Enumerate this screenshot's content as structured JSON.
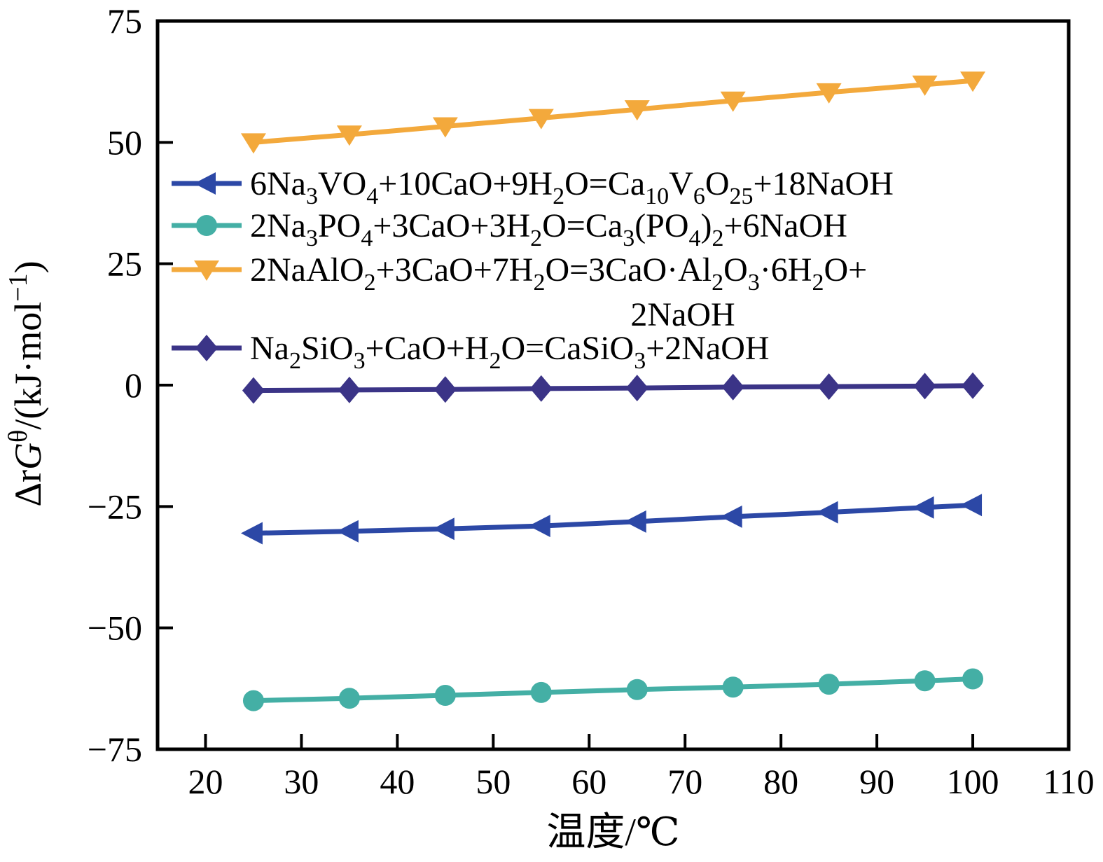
{
  "chart_data": {
    "type": "line",
    "title": "",
    "xlabel": "温度/℃",
    "ylabel_plain": "ΔrGθ/(kJ·mol−1)",
    "ylabel_segments": [
      {
        "t": "Δr"
      },
      {
        "t": "G",
        "italic": true
      },
      {
        "t": "θ",
        "sup": true
      },
      {
        "t": "/(kJ·mol"
      },
      {
        "t": "−1",
        "sup": true
      },
      {
        "t": ")"
      }
    ],
    "xlim": [
      15,
      110
    ],
    "ylim": [
      -75,
      75
    ],
    "x_ticks": [
      {
        "v": 20,
        "label": "20"
      },
      {
        "v": 30,
        "label": "30"
      },
      {
        "v": 40,
        "label": "40"
      },
      {
        "v": 50,
        "label": "50"
      },
      {
        "v": 60,
        "label": "60"
      },
      {
        "v": 70,
        "label": "70"
      },
      {
        "v": 80,
        "label": "80"
      },
      {
        "v": 90,
        "label": "90"
      },
      {
        "v": 100,
        "label": "100"
      },
      {
        "v": 110,
        "label": "110"
      }
    ],
    "y_ticks": [
      {
        "v": 75,
        "label": "75"
      },
      {
        "v": 50,
        "label": "50"
      },
      {
        "v": 25,
        "label": "25"
      },
      {
        "v": 0,
        "label": "0"
      },
      {
        "v": -25,
        "label": "−25"
      },
      {
        "v": -50,
        "label": "−50"
      },
      {
        "v": -75,
        "label": "−75"
      }
    ],
    "grid": false,
    "legend_position": "inside-upper-left",
    "background": "#ffffff",
    "axis_color": "#000000",
    "x": [
      25,
      35,
      45,
      55,
      65,
      75,
      85,
      95,
      100
    ],
    "series": [
      {
        "name": "vanadate-reaction",
        "marker": "triangle-left",
        "color": "#2c48a6",
        "label_lines": [
          "6Na_3_VO_4_+10CaO+9H_2_O=Ca_10_V_6_O_25_+18NaOH"
        ],
        "values": [
          -30.5,
          -30.1,
          -29.6,
          -29.0,
          -28.1,
          -27.1,
          -26.2,
          -25.2,
          -24.7
        ]
      },
      {
        "name": "phosphate-reaction",
        "marker": "circle",
        "color": "#44afa5",
        "label_lines": [
          "2Na_3_PO_4_+3CaO+3H_2_O=Ca_3_(PO_4_)_2_+6NaOH"
        ],
        "values": [
          -65.0,
          -64.5,
          -63.9,
          -63.3,
          -62.7,
          -62.2,
          -61.6,
          -60.9,
          -60.5
        ]
      },
      {
        "name": "aluminate-reaction",
        "marker": "triangle-down",
        "color": "#f3a93c",
        "label_lines": [
          "2NaAlO_2_+3CaO+7H_2_O=3CaO·Al_2_O_3_·6H_2_O+",
          "2NaOH"
        ],
        "values": [
          50.0,
          51.6,
          53.3,
          55.0,
          56.8,
          58.6,
          60.3,
          61.9,
          62.7
        ]
      },
      {
        "name": "silicate-reaction",
        "marker": "diamond",
        "color": "#3b3487",
        "label_lines": [
          "Na_2_SiO_3_+CaO+H_2_O=CaSiO_3_+2NaOH"
        ],
        "values": [
          -1.1,
          -1.0,
          -0.9,
          -0.7,
          -0.6,
          -0.4,
          -0.3,
          -0.2,
          -0.1
        ]
      }
    ]
  }
}
